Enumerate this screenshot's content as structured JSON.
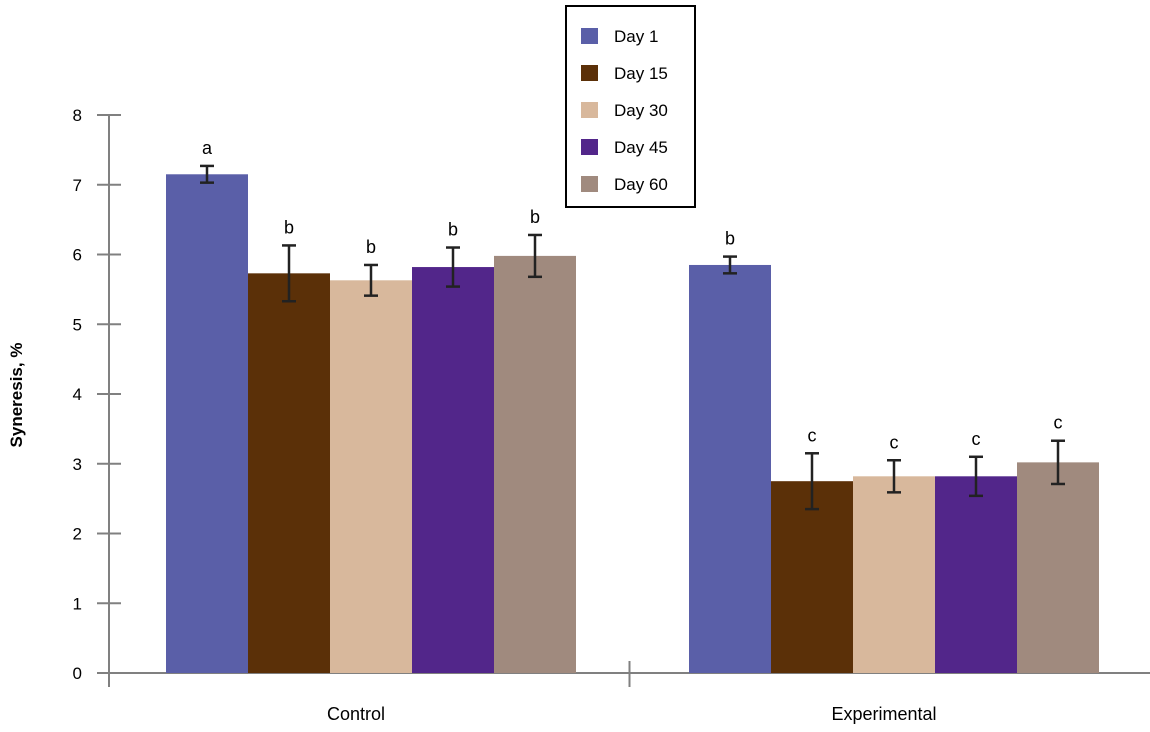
{
  "chart_data": {
    "type": "bar",
    "title": "",
    "xlabel": "",
    "ylabel": "Syneresis, %",
    "ylim": [
      0,
      8
    ],
    "yticks": [
      0,
      1,
      2,
      3,
      4,
      5,
      6,
      7,
      8
    ],
    "grid": false,
    "legend_position": "top-center",
    "categories": [
      "Control",
      "Experimental"
    ],
    "series": [
      {
        "name": "Day 1",
        "color": "#5a5fa8",
        "values": [
          7.15,
          5.85
        ],
        "errors": [
          0.12,
          0.12
        ],
        "labels": [
          "a",
          "b"
        ]
      },
      {
        "name": "Day 15",
        "color": "#5b3008",
        "values": [
          5.73,
          2.75
        ],
        "errors": [
          0.4,
          0.4
        ],
        "labels": [
          "b",
          "c"
        ]
      },
      {
        "name": "Day 30",
        "color": "#d8b89c",
        "values": [
          5.63,
          2.82
        ],
        "errors": [
          0.22,
          0.23
        ],
        "labels": [
          "b",
          "c"
        ]
      },
      {
        "name": "Day 45",
        "color": "#52268a",
        "values": [
          5.82,
          2.82
        ],
        "errors": [
          0.28,
          0.28
        ],
        "labels": [
          "b",
          "c"
        ]
      },
      {
        "name": "Day 60",
        "color": "#a08a7e",
        "values": [
          5.98,
          3.02
        ],
        "errors": [
          0.3,
          0.31
        ],
        "labels": [
          "b",
          "c"
        ]
      }
    ]
  }
}
